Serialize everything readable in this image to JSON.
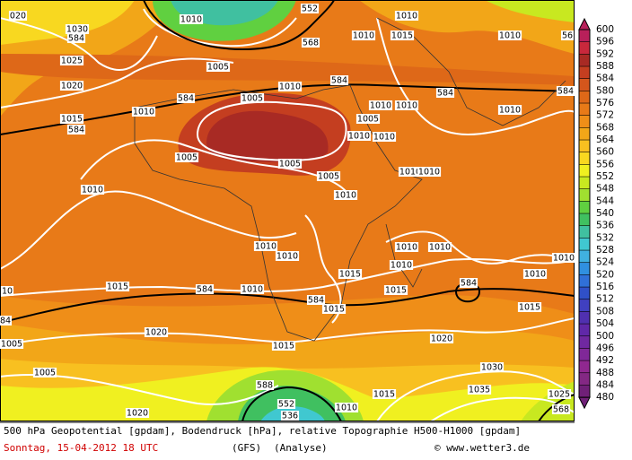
{
  "map_labels": [
    "020",
    "1030",
    "584",
    "1025",
    "1020",
    "1015",
    "584",
    "1010",
    "1005",
    "1010",
    "1005",
    "1010",
    "552",
    "568",
    "1010",
    "1015",
    "1010",
    "1010",
    "584",
    "1010",
    "584",
    "1005",
    "584",
    "1010",
    "1010",
    "1010",
    "1005",
    "1010",
    "1010",
    "1005",
    "1005",
    "1010",
    "1010",
    "1010",
    "1010",
    "1010",
    "1010",
    "1010",
    "1010",
    "1010",
    "1015",
    "1015",
    "584",
    "1010",
    "1015",
    "584",
    "584",
    "1015",
    "1015",
    "1020",
    "1015",
    "1020",
    "1005",
    "1005",
    "1030",
    "588",
    "552",
    "536",
    "1035",
    "1015",
    "1020",
    "1010",
    "1025",
    "568",
    "584",
    "56",
    "1010",
    "10",
    "84"
  ],
  "colorbar": {
    "ticks": [
      600,
      596,
      592,
      588,
      584,
      580,
      576,
      572,
      568,
      564,
      560,
      556,
      552,
      548,
      544,
      540,
      536,
      532,
      528,
      524,
      520,
      516,
      512,
      508,
      504,
      500,
      496,
      492,
      488,
      484,
      480
    ],
    "colors": [
      "#b8205a",
      "#c8283c",
      "#a82a24",
      "#c43e20",
      "#d4561c",
      "#de6818",
      "#e87a18",
      "#ef8e18",
      "#f2a618",
      "#f8c020",
      "#f8d820",
      "#f0f020",
      "#c8e820",
      "#a0e030",
      "#60d040",
      "#40c060",
      "#40c0a0",
      "#40c8d0",
      "#40b0e0",
      "#3090e0",
      "#3070d8",
      "#3050c8",
      "#4040c0",
      "#5030b0",
      "#6028a8",
      "#7028a0",
      "#802898",
      "#902890",
      "#842884",
      "#702078"
    ]
  },
  "footer": {
    "description": "500 hPa Geopotential [gpdam], Bodendruck [hPa], relative Topographie H500-H1000 [gpdam]",
    "date": "Sonntag, 15-04-2012  18 UTC",
    "model": "(GFS)",
    "run": "(Analyse)",
    "credit": "© www.wetter3.de"
  }
}
